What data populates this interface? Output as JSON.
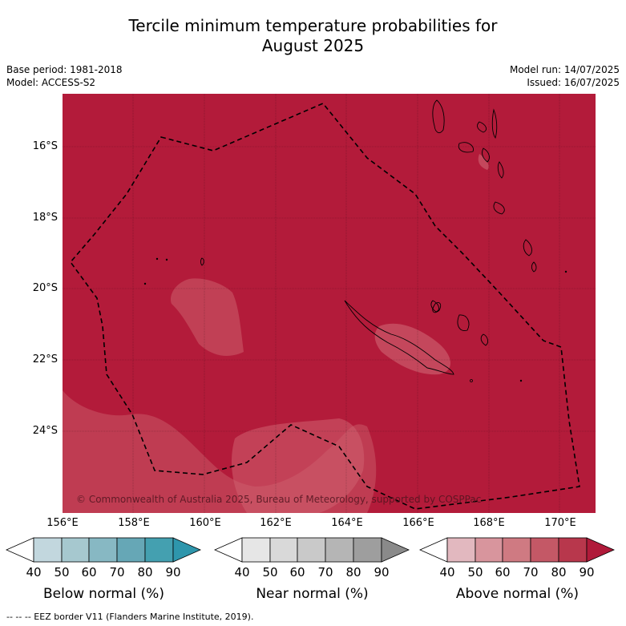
{
  "title_line1": "Tercile minimum temperature probabilities for",
  "title_line2": "August 2025",
  "meta_left": {
    "base_period": "Base period: 1981-2018",
    "model": "Model: ACCESS-S2"
  },
  "meta_right": {
    "model_run": "Model run: 14/07/2025",
    "issued": "Issued: 16/07/2025"
  },
  "map": {
    "lat_labels": [
      "16°S",
      "18°S",
      "20°S",
      "22°S",
      "24°S"
    ],
    "lon_labels": [
      "156°E",
      "158°E",
      "160°E",
      "162°E",
      "164°E",
      "166°E",
      "168°E",
      "170°E"
    ],
    "copyright": "© Commonwealth of Australia 2025, Bureau of Meteorology, supported by COSPPac",
    "colors": {
      "dominant": "#b31b3a",
      "light": "#c85060",
      "lighter": "#d06a7a"
    }
  },
  "colorbars": [
    {
      "title": "Below normal (%)",
      "ticks": [
        "40",
        "50",
        "60",
        "70",
        "80",
        "90"
      ],
      "colors": [
        "#ffffff",
        "#c2d7de",
        "#a6c8cf",
        "#87b8c3",
        "#66a7b6",
        "#44a0b0",
        "#2e96ac"
      ]
    },
    {
      "title": "Near normal (%)",
      "ticks": [
        "40",
        "50",
        "60",
        "70",
        "80",
        "90"
      ],
      "colors": [
        "#ffffff",
        "#e6e6e6",
        "#d9d9d9",
        "#c9c9c9",
        "#b5b5b5",
        "#9e9e9e",
        "#8a8a8a"
      ]
    },
    {
      "title": "Above normal (%)",
      "ticks": [
        "40",
        "50",
        "60",
        "70",
        "80",
        "90"
      ],
      "colors": [
        "#ffffff",
        "#e2b8bf",
        "#d8959d",
        "#cf7a82",
        "#c45866",
        "#b8374c",
        "#b01a3a"
      ]
    }
  ],
  "footnote": "--  --  -- EEZ border V11 (Flanders Marine Institute, 2019)."
}
